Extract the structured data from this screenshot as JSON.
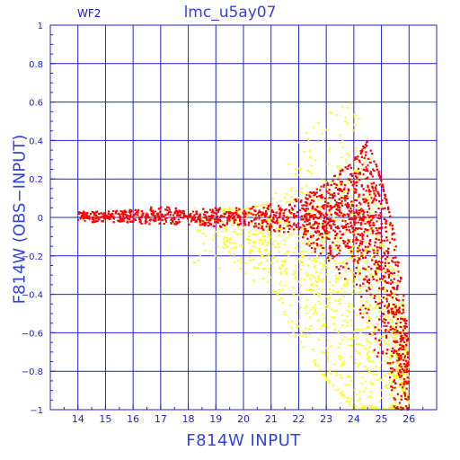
{
  "chart_data": {
    "type": "scatter",
    "title": "lmc_u5ay07",
    "panel_label": "WF2",
    "xlabel": "F814W INPUT",
    "ylabel": "F814W (OBS−INPUT)",
    "xlim": [
      13.0,
      27.0
    ],
    "ylim": [
      -1.0,
      1.0
    ],
    "x_ticks": [
      14,
      15,
      16,
      17,
      18,
      19,
      20,
      21,
      22,
      23,
      24,
      25,
      26
    ],
    "y_ticks": [
      1,
      0.8,
      0.6,
      0.4,
      0.2,
      0,
      -0.2,
      -0.4,
      -0.6,
      -0.8,
      -1
    ],
    "y_tick_labels": [
      "1",
      "0.8",
      "0.6",
      "0.4",
      "0.2",
      "0",
      "−0.2",
      "−0.4",
      "−0.6",
      "−0.8",
      "−1"
    ],
    "grid": true,
    "series": [
      {
        "color": "#ff0000",
        "envelope": [
          {
            "x": 14.0,
            "y_low": -0.03,
            "y_high": 0.03,
            "y_center": 0.005
          },
          {
            "x": 15.0,
            "y_low": -0.03,
            "y_high": 0.03,
            "y_center": 0.005
          },
          {
            "x": 16.0,
            "y_low": -0.03,
            "y_high": 0.04,
            "y_center": 0.01
          },
          {
            "x": 17.0,
            "y_low": -0.04,
            "y_high": 0.06,
            "y_center": 0.01
          },
          {
            "x": 18.0,
            "y_low": -0.04,
            "y_high": 0.04,
            "y_center": 0.005
          },
          {
            "x": 19.0,
            "y_low": -0.05,
            "y_high": 0.05,
            "y_center": 0.0
          },
          {
            "x": 20.0,
            "y_low": -0.05,
            "y_high": 0.05,
            "y_center": 0.0
          },
          {
            "x": 21.0,
            "y_low": -0.07,
            "y_high": 0.07,
            "y_center": 0.0
          },
          {
            "x": 22.0,
            "y_low": -0.12,
            "y_high": 0.1,
            "y_center": 0.0
          },
          {
            "x": 23.0,
            "y_low": -0.22,
            "y_high": 0.18,
            "y_center": 0.0
          },
          {
            "x": 24.0,
            "y_low": -0.4,
            "y_high": 0.3,
            "y_center": 0.02
          },
          {
            "x": 24.5,
            "y_low": -0.6,
            "y_high": 0.4,
            "y_center": 0.0
          },
          {
            "x": 25.0,
            "y_low": -0.8,
            "y_high": 0.2,
            "y_center": -0.1
          },
          {
            "x": 25.5,
            "y_low": -1.0,
            "y_high": -0.1,
            "y_center": -0.5
          },
          {
            "x": 26.0,
            "y_low": -1.0,
            "y_high": -0.6,
            "y_center": -0.8
          }
        ]
      },
      {
        "color": "#ffff00",
        "envelope": [
          {
            "x": 18.0,
            "y_low": -0.25,
            "y_high": 0.05,
            "y_center": -0.05
          },
          {
            "x": 20.0,
            "y_low": -0.3,
            "y_high": 0.05,
            "y_center": -0.08
          },
          {
            "x": 21.0,
            "y_low": -0.4,
            "y_high": 0.08,
            "y_center": -0.12
          },
          {
            "x": 22.0,
            "y_low": -0.65,
            "y_high": 0.4,
            "y_center": -0.2
          },
          {
            "x": 23.0,
            "y_low": -0.85,
            "y_high": 0.55,
            "y_center": -0.3
          },
          {
            "x": 24.0,
            "y_low": -1.0,
            "y_high": 0.6,
            "y_center": -0.35
          },
          {
            "x": 25.0,
            "y_low": -1.0,
            "y_high": 0.2,
            "y_center": -0.5
          },
          {
            "x": 26.0,
            "y_low": -1.0,
            "y_high": -0.6,
            "y_center": -0.85
          }
        ]
      }
    ]
  }
}
